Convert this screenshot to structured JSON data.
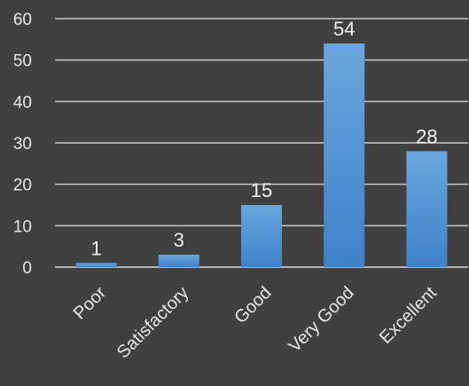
{
  "chart_data": {
    "type": "bar",
    "categories": [
      "Poor",
      "Satisfactory",
      "Good",
      "Very Good",
      "Excellent"
    ],
    "values": [
      1,
      3,
      15,
      54,
      28
    ],
    "data_labels": [
      "1",
      "3",
      "15",
      "54",
      "28"
    ],
    "ylim": [
      0,
      60
    ],
    "yticks": [
      "0",
      "10",
      "20",
      "30",
      "40",
      "50",
      "60"
    ],
    "grid": true,
    "legend": "none",
    "colors": {
      "background": "#404040",
      "bar_top": "#6aa6de",
      "bar_bottom": "#3e82c8",
      "grid": "#c8c8c8",
      "text": "#e6e6e6"
    }
  }
}
